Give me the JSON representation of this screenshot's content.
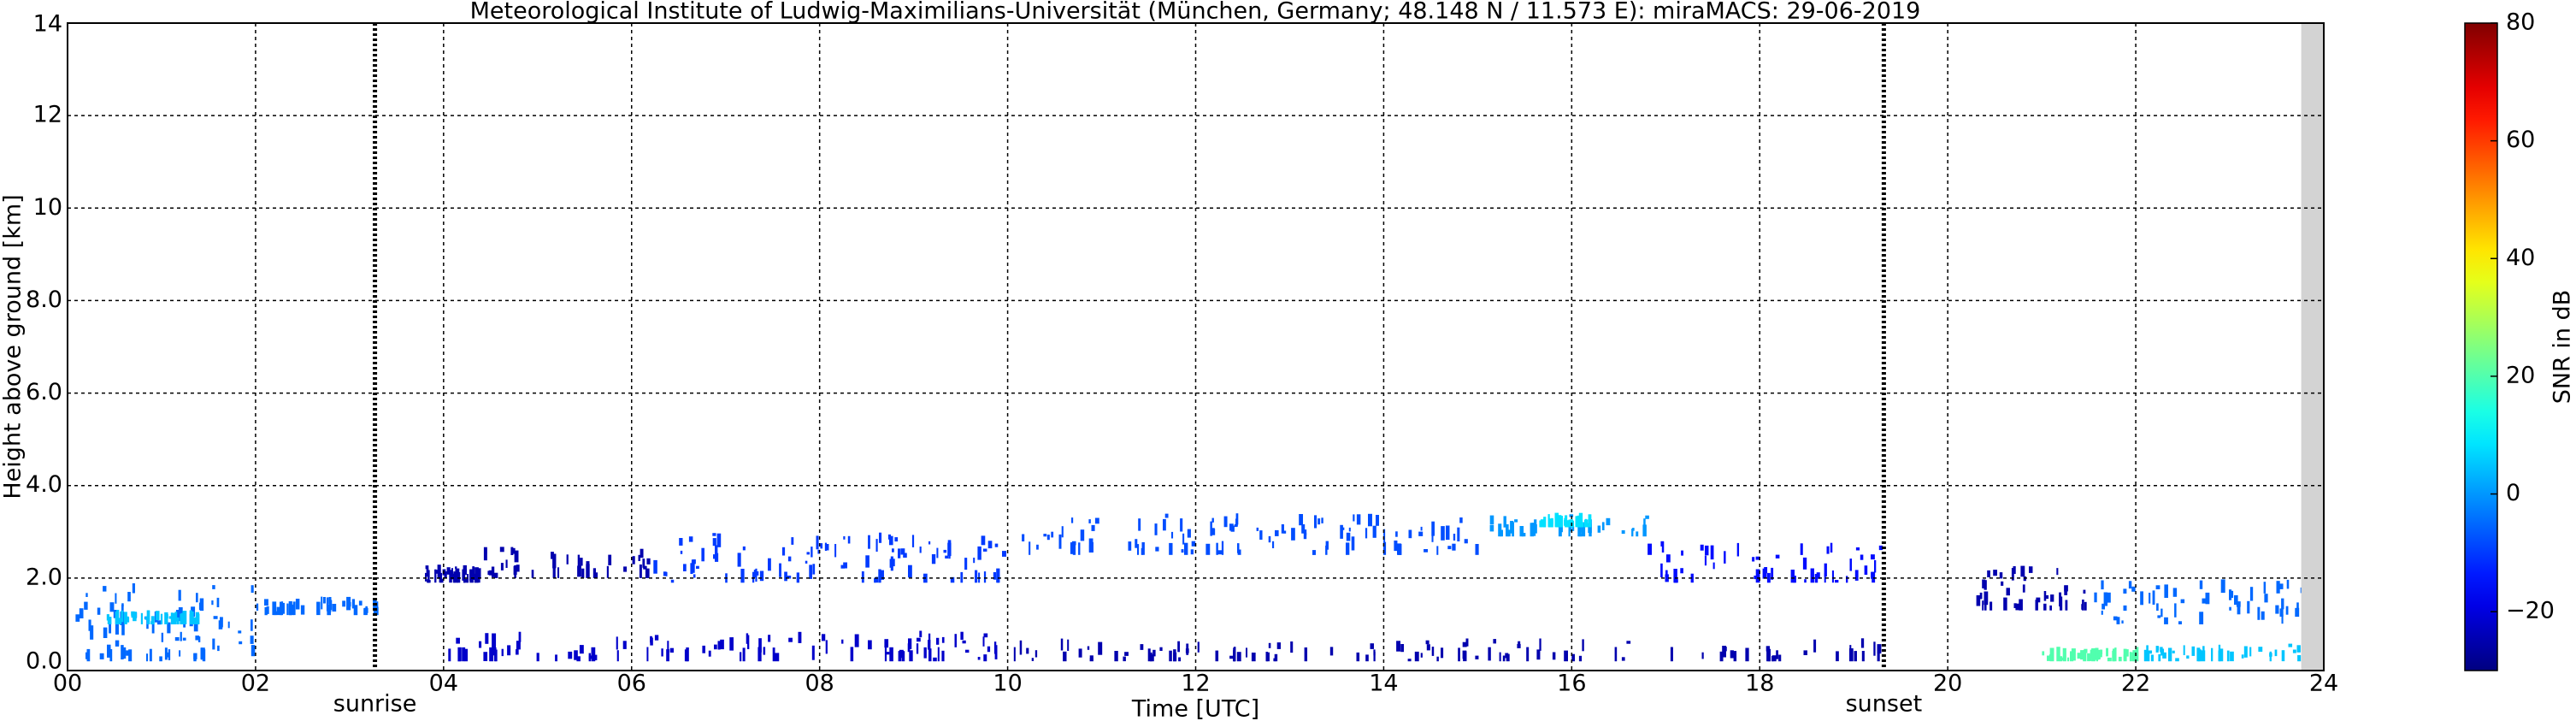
{
  "chart_data": {
    "type": "heatmap",
    "title": "Meteorological Institute of Ludwig-Maximilians-Universität (München, Germany; 48.148 N / 11.573 E):    miraMACS: 29-06-2019",
    "xlabel": "Time [UTC]",
    "ylabel": "Height above ground [km]",
    "xlim": [
      0,
      24
    ],
    "xticks": [
      {
        "value": 0,
        "label": "00"
      },
      {
        "value": 2,
        "label": "02"
      },
      {
        "value": 4,
        "label": "04"
      },
      {
        "value": 6,
        "label": "06"
      },
      {
        "value": 8,
        "label": "08"
      },
      10,
      12,
      14,
      16,
      18,
      20,
      22,
      24
    ],
    "ylim": [
      0,
      14
    ],
    "yticks": [
      {
        "value": 0,
        "label": "0.0"
      },
      {
        "value": 2,
        "label": "2.0"
      },
      {
        "value": 4,
        "label": "4.0"
      },
      {
        "value": 6,
        "label": "6.0"
      },
      {
        "value": 8,
        "label": "8.0"
      },
      10,
      12,
      14
    ],
    "grid": true,
    "colormap": "jet",
    "colorbar": {
      "label": "SNR in dB",
      "lim": [
        -30,
        80
      ],
      "ticks": [
        {
          "value": -20,
          "label": "−20"
        },
        0,
        20,
        40,
        60,
        80
      ]
    },
    "markers": [
      {
        "label": "sunrise",
        "x": 3.27
      },
      {
        "label": "sunset",
        "x": 19.32
      }
    ],
    "missing_data": {
      "x": [
        23.76,
        24
      ],
      "color": "#d3d3d3"
    },
    "echoes": [
      {
        "x": [
          0,
          2.0
        ],
        "y": [
          0.2,
          1.9
        ],
        "snr": -5
      },
      {
        "x": [
          0.4,
          1.4
        ],
        "y": [
          1.0,
          1.3
        ],
        "snr": 5
      },
      {
        "x": [
          2.0,
          3.3
        ],
        "y": [
          1.2,
          1.6
        ],
        "snr": -5
      },
      {
        "x": [
          3.8,
          4.4
        ],
        "y": [
          1.9,
          2.3
        ],
        "snr": -25
      },
      {
        "x": [
          4.4,
          6.2
        ],
        "y": [
          2.0,
          2.7
        ],
        "snr": -25
      },
      {
        "x": [
          6.2,
          10
        ],
        "y": [
          1.9,
          3.0
        ],
        "snr": -10
      },
      {
        "x": [
          10,
          15
        ],
        "y": [
          2.5,
          3.4
        ],
        "snr": -8
      },
      {
        "x": [
          15.1,
          16.8
        ],
        "y": [
          2.9,
          3.4
        ],
        "snr": 0
      },
      {
        "x": [
          15.6,
          16.2
        ],
        "y": [
          3.1,
          3.3
        ],
        "snr": 8
      },
      {
        "x": [
          16.8,
          19.3
        ],
        "y": [
          1.9,
          2.8
        ],
        "snr": -15
      },
      {
        "x": [
          4.0,
          10
        ],
        "y": [
          0.2,
          0.9
        ],
        "snr": -22
      },
      {
        "x": [
          10,
          19.5
        ],
        "y": [
          0.2,
          0.7
        ],
        "snr": -25
      },
      {
        "x": [
          20.3,
          21.5
        ],
        "y": [
          1.3,
          2.3
        ],
        "snr": -25
      },
      {
        "x": [
          21,
          22
        ],
        "y": [
          0.2,
          0.5
        ],
        "snr": 20
      },
      {
        "x": [
          21.5,
          23.76
        ],
        "y": [
          1.0,
          2.0
        ],
        "snr": -5
      },
      {
        "x": [
          22,
          23.76
        ],
        "y": [
          0.2,
          0.6
        ],
        "snr": 5
      }
    ]
  }
}
